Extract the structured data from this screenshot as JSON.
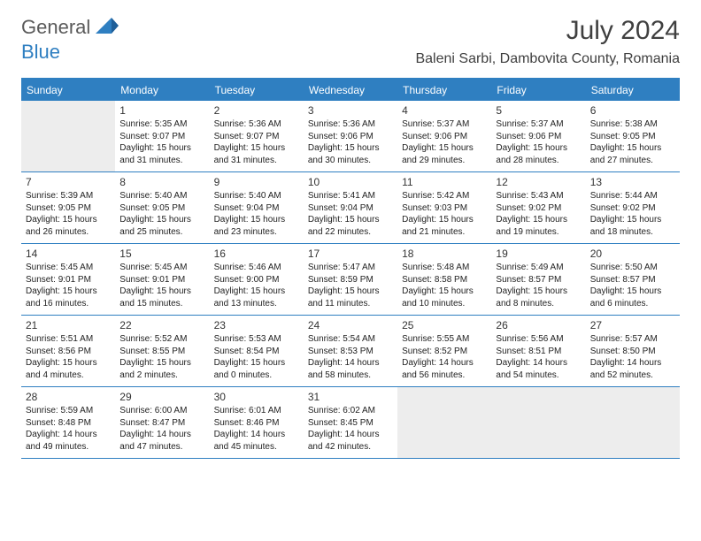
{
  "brand": {
    "part1": "General",
    "part2": "Blue"
  },
  "title": "July 2024",
  "location": "Baleni Sarbi, Dambovita County, Romania",
  "dayNames": [
    "Sunday",
    "Monday",
    "Tuesday",
    "Wednesday",
    "Thursday",
    "Friday",
    "Saturday"
  ],
  "colors": {
    "accent": "#2f7fc1",
    "shaded_bg": "#ededed",
    "text": "#222222",
    "title_text": "#404040"
  },
  "typography": {
    "title_fontsize": 30,
    "location_fontsize": 16,
    "header_fontsize": 12,
    "daynum_fontsize": 12,
    "info_fontsize": 10
  },
  "startCol": 1,
  "days": [
    {
      "n": 1,
      "sr": "5:35 AM",
      "ss": "9:07 PM",
      "dl": "15 hours and 31 minutes."
    },
    {
      "n": 2,
      "sr": "5:36 AM",
      "ss": "9:07 PM",
      "dl": "15 hours and 31 minutes."
    },
    {
      "n": 3,
      "sr": "5:36 AM",
      "ss": "9:06 PM",
      "dl": "15 hours and 30 minutes."
    },
    {
      "n": 4,
      "sr": "5:37 AM",
      "ss": "9:06 PM",
      "dl": "15 hours and 29 minutes."
    },
    {
      "n": 5,
      "sr": "5:37 AM",
      "ss": "9:06 PM",
      "dl": "15 hours and 28 minutes."
    },
    {
      "n": 6,
      "sr": "5:38 AM",
      "ss": "9:05 PM",
      "dl": "15 hours and 27 minutes."
    },
    {
      "n": 7,
      "sr": "5:39 AM",
      "ss": "9:05 PM",
      "dl": "15 hours and 26 minutes."
    },
    {
      "n": 8,
      "sr": "5:40 AM",
      "ss": "9:05 PM",
      "dl": "15 hours and 25 minutes."
    },
    {
      "n": 9,
      "sr": "5:40 AM",
      "ss": "9:04 PM",
      "dl": "15 hours and 23 minutes."
    },
    {
      "n": 10,
      "sr": "5:41 AM",
      "ss": "9:04 PM",
      "dl": "15 hours and 22 minutes."
    },
    {
      "n": 11,
      "sr": "5:42 AM",
      "ss": "9:03 PM",
      "dl": "15 hours and 21 minutes."
    },
    {
      "n": 12,
      "sr": "5:43 AM",
      "ss": "9:02 PM",
      "dl": "15 hours and 19 minutes."
    },
    {
      "n": 13,
      "sr": "5:44 AM",
      "ss": "9:02 PM",
      "dl": "15 hours and 18 minutes."
    },
    {
      "n": 14,
      "sr": "5:45 AM",
      "ss": "9:01 PM",
      "dl": "15 hours and 16 minutes."
    },
    {
      "n": 15,
      "sr": "5:45 AM",
      "ss": "9:01 PM",
      "dl": "15 hours and 15 minutes."
    },
    {
      "n": 16,
      "sr": "5:46 AM",
      "ss": "9:00 PM",
      "dl": "15 hours and 13 minutes."
    },
    {
      "n": 17,
      "sr": "5:47 AM",
      "ss": "8:59 PM",
      "dl": "15 hours and 11 minutes."
    },
    {
      "n": 18,
      "sr": "5:48 AM",
      "ss": "8:58 PM",
      "dl": "15 hours and 10 minutes."
    },
    {
      "n": 19,
      "sr": "5:49 AM",
      "ss": "8:57 PM",
      "dl": "15 hours and 8 minutes."
    },
    {
      "n": 20,
      "sr": "5:50 AM",
      "ss": "8:57 PM",
      "dl": "15 hours and 6 minutes."
    },
    {
      "n": 21,
      "sr": "5:51 AM",
      "ss": "8:56 PM",
      "dl": "15 hours and 4 minutes."
    },
    {
      "n": 22,
      "sr": "5:52 AM",
      "ss": "8:55 PM",
      "dl": "15 hours and 2 minutes."
    },
    {
      "n": 23,
      "sr": "5:53 AM",
      "ss": "8:54 PM",
      "dl": "15 hours and 0 minutes."
    },
    {
      "n": 24,
      "sr": "5:54 AM",
      "ss": "8:53 PM",
      "dl": "14 hours and 58 minutes."
    },
    {
      "n": 25,
      "sr": "5:55 AM",
      "ss": "8:52 PM",
      "dl": "14 hours and 56 minutes."
    },
    {
      "n": 26,
      "sr": "5:56 AM",
      "ss": "8:51 PM",
      "dl": "14 hours and 54 minutes."
    },
    {
      "n": 27,
      "sr": "5:57 AM",
      "ss": "8:50 PM",
      "dl": "14 hours and 52 minutes."
    },
    {
      "n": 28,
      "sr": "5:59 AM",
      "ss": "8:48 PM",
      "dl": "14 hours and 49 minutes."
    },
    {
      "n": 29,
      "sr": "6:00 AM",
      "ss": "8:47 PM",
      "dl": "14 hours and 47 minutes."
    },
    {
      "n": 30,
      "sr": "6:01 AM",
      "ss": "8:46 PM",
      "dl": "14 hours and 45 minutes."
    },
    {
      "n": 31,
      "sr": "6:02 AM",
      "ss": "8:45 PM",
      "dl": "14 hours and 42 minutes."
    }
  ],
  "labels": {
    "sunrise": "Sunrise:",
    "sunset": "Sunset:",
    "daylight": "Daylight:"
  }
}
